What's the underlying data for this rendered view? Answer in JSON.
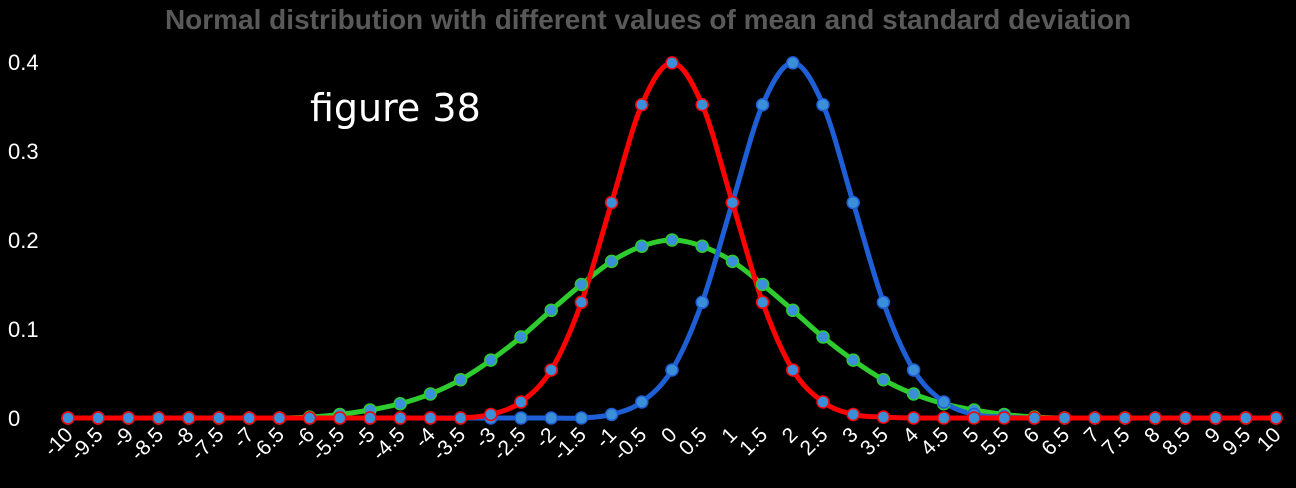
{
  "chart_data": {
    "type": "line",
    "title": "Normal distribution with different values of mean and standard deviation",
    "annotation": "figure 38",
    "xlabel": "",
    "ylabel": "",
    "ylim": [
      0,
      0.4
    ],
    "y_ticks": [
      "0",
      "0.1",
      "0.2",
      "0.3",
      "0.4"
    ],
    "x": [
      "-10",
      "-9.5",
      "-9",
      "-8.5",
      "-8",
      "-7.5",
      "-7",
      "-6.5",
      "-6",
      "-5.5",
      "-5",
      "-4.5",
      "-4",
      "-3.5",
      "-3",
      "-2.5",
      "-2",
      "-1.5",
      "-1",
      "-0.5",
      "0",
      "0.5",
      "1",
      "1.5",
      "2",
      "2.5",
      "3",
      "3.5",
      "4",
      "4.5",
      "5",
      "5.5",
      "6",
      "6.5",
      "7",
      "7.5",
      "8",
      "8.5",
      "9",
      "9.5",
      "10"
    ],
    "grid": false,
    "legend": "none",
    "series": [
      {
        "color": "#2ecc2e",
        "values": [
          0,
          0,
          0,
          0,
          0,
          0,
          0,
          0,
          0.001,
          0.004,
          0.009,
          0.016,
          0.027,
          0.043,
          0.065,
          0.091,
          0.121,
          0.15,
          0.176,
          0.193,
          0.2,
          0.193,
          0.176,
          0.15,
          0.121,
          0.091,
          0.065,
          0.043,
          0.027,
          0.016,
          0.009,
          0.004,
          0.001,
          0,
          0,
          0,
          0,
          0,
          0,
          0,
          0
        ]
      },
      {
        "color": "#1f5fd6",
        "values": [
          0,
          0,
          0,
          0,
          0,
          0,
          0,
          0,
          0,
          0,
          0,
          0,
          0,
          0,
          0,
          0,
          0,
          0,
          0.004,
          0.018,
          0.054,
          0.13,
          0.242,
          0.352,
          0.399,
          0.352,
          0.242,
          0.13,
          0.054,
          0.018,
          0.004,
          0.001,
          0,
          0,
          0,
          0,
          0,
          0,
          0,
          0,
          0
        ]
      },
      {
        "color": "#ff0000",
        "values": [
          0,
          0,
          0,
          0,
          0,
          0,
          0,
          0,
          0,
          0,
          0,
          0,
          0,
          0,
          0.004,
          0.018,
          0.054,
          0.13,
          0.242,
          0.352,
          0.399,
          0.352,
          0.242,
          0.13,
          0.054,
          0.018,
          0.004,
          0.001,
          0,
          0,
          0,
          0,
          0,
          0,
          0,
          0,
          0,
          0,
          0,
          0,
          0
        ]
      }
    ],
    "marker_color": "#3a8fd8",
    "axis_text_color": "#ffffff"
  }
}
